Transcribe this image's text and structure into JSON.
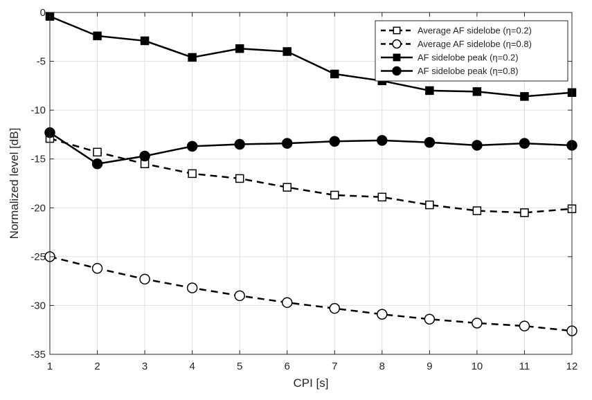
{
  "chart_data": {
    "type": "line",
    "title": "",
    "xlabel": "CPI [s]",
    "ylabel": "Normalized level [dB]",
    "xlim": [
      1,
      12
    ],
    "ylim": [
      -35,
      0
    ],
    "xticks": [
      1,
      2,
      3,
      4,
      5,
      6,
      7,
      8,
      9,
      10,
      11,
      12
    ],
    "yticks": [
      0,
      -5,
      -10,
      -15,
      -20,
      -25,
      -30,
      -35
    ],
    "grid": true,
    "legend_position": "top-right",
    "x": [
      1,
      2,
      3,
      4,
      5,
      6,
      7,
      8,
      9,
      10,
      11,
      12
    ],
    "series": [
      {
        "name": "Average AF sidelobe (η=0.2)",
        "line_style": "dashed",
        "marker": "square",
        "marker_fill": "open",
        "color": "#000000",
        "values": [
          -12.9,
          -14.3,
          -15.5,
          -16.5,
          -17.0,
          -17.9,
          -18.7,
          -18.9,
          -19.7,
          -20.3,
          -20.5,
          -20.1
        ]
      },
      {
        "name": "Average AF sidelobe (η=0.8)",
        "line_style": "dashed",
        "marker": "circle",
        "marker_fill": "open",
        "color": "#000000",
        "values": [
          -25.0,
          -26.2,
          -27.3,
          -28.2,
          -29.0,
          -29.7,
          -30.3,
          -30.9,
          -31.4,
          -31.8,
          -32.1,
          -32.6
        ]
      },
      {
        "name": "AF sidelobe peak (η=0.2)",
        "line_style": "solid",
        "marker": "square",
        "marker_fill": "filled",
        "color": "#000000",
        "values": [
          -0.4,
          -2.4,
          -2.9,
          -4.6,
          -3.7,
          -4.0,
          -6.3,
          -7.0,
          -8.0,
          -8.1,
          -8.6,
          -8.2
        ]
      },
      {
        "name": "AF sidelobe peak (η=0.8)",
        "line_style": "solid",
        "marker": "circle",
        "marker_fill": "filled",
        "color": "#000000",
        "values": [
          -12.3,
          -15.5,
          -14.7,
          -13.7,
          -13.5,
          -13.4,
          -13.2,
          -13.1,
          -13.3,
          -13.6,
          -13.4,
          -13.6
        ]
      }
    ]
  }
}
